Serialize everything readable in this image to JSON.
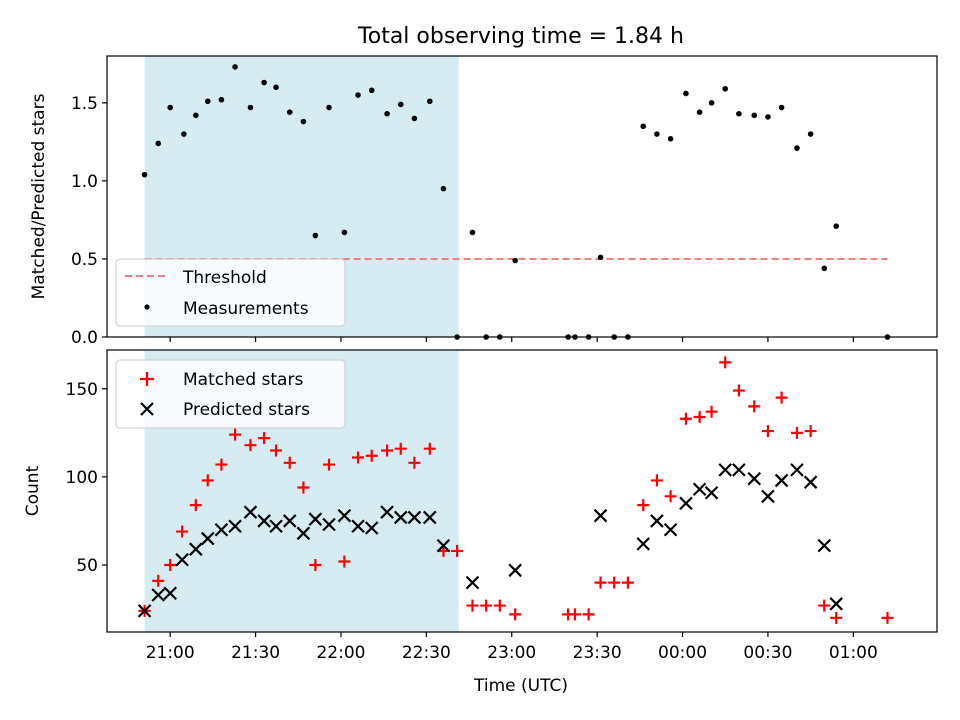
{
  "title": "Total observing time = 1.84 h",
  "colors": {
    "threshold": "#f08080",
    "measurement": "#000000",
    "matched": "#ff0000",
    "predicted": "#000000",
    "shade": "#add8e6"
  },
  "chart_data": [
    {
      "type": "scatter",
      "panel": "top",
      "title": "Total observing time = 1.84 h",
      "ylabel": "Matched/Predicted stars",
      "x_unit": "hours since 20:00 UTC",
      "xlim": [
        20.63,
        25.49
      ],
      "ylim": [
        0,
        1.8
      ],
      "yticks": [
        0.0,
        0.5,
        1.0,
        1.5
      ],
      "ytick_labels": [
        "0.0",
        "0.5",
        "1.0",
        "1.5"
      ],
      "shaded_span": [
        20.85,
        22.69
      ],
      "threshold": {
        "name": "Threshold",
        "y": 0.5,
        "x_range": [
          20.85,
          25.2
        ],
        "style": "dashed"
      },
      "legend_position": "lower-left",
      "series": [
        {
          "name": "Measurements",
          "marker": "dot",
          "points": [
            [
              20.85,
              1.04
            ],
            [
              20.93,
              1.24
            ],
            [
              21.0,
              1.47
            ],
            [
              21.08,
              1.3
            ],
            [
              21.15,
              1.42
            ],
            [
              21.22,
              1.51
            ],
            [
              21.3,
              1.52
            ],
            [
              21.38,
              1.73
            ],
            [
              21.47,
              1.47
            ],
            [
              21.55,
              1.63
            ],
            [
              21.62,
              1.6
            ],
            [
              21.7,
              1.44
            ],
            [
              21.78,
              1.38
            ],
            [
              21.85,
              0.65
            ],
            [
              21.93,
              1.47
            ],
            [
              22.02,
              0.67
            ],
            [
              22.1,
              1.55
            ],
            [
              22.18,
              1.58
            ],
            [
              22.27,
              1.43
            ],
            [
              22.35,
              1.49
            ],
            [
              22.43,
              1.4
            ],
            [
              22.52,
              1.51
            ],
            [
              22.6,
              0.95
            ],
            [
              22.68,
              0.0
            ],
            [
              22.77,
              0.67
            ],
            [
              22.85,
              0.0
            ],
            [
              22.93,
              0.0
            ],
            [
              23.02,
              0.49
            ],
            [
              23.33,
              0.0
            ],
            [
              23.37,
              0.0
            ],
            [
              23.45,
              0.0
            ],
            [
              23.52,
              0.51
            ],
            [
              23.6,
              0.0
            ],
            [
              23.68,
              0.0
            ],
            [
              23.77,
              1.35
            ],
            [
              23.85,
              1.3
            ],
            [
              23.93,
              1.27
            ],
            [
              24.02,
              1.56
            ],
            [
              24.1,
              1.44
            ],
            [
              24.17,
              1.5
            ],
            [
              24.25,
              1.59
            ],
            [
              24.33,
              1.43
            ],
            [
              24.42,
              1.42
            ],
            [
              24.5,
              1.41
            ],
            [
              24.58,
              1.47
            ],
            [
              24.67,
              1.21
            ],
            [
              24.75,
              1.3
            ],
            [
              24.83,
              0.44
            ],
            [
              24.9,
              0.71
            ],
            [
              25.2,
              0.0
            ]
          ]
        }
      ]
    },
    {
      "type": "scatter",
      "panel": "bottom",
      "xlabel": "Time (UTC)",
      "ylabel": "Count",
      "x_unit": "hours since 20:00 UTC",
      "xlim": [
        20.63,
        25.49
      ],
      "ylim": [
        12,
        172
      ],
      "yticks": [
        50,
        100,
        150
      ],
      "xticks": [
        21.0,
        21.5,
        22.0,
        22.5,
        23.0,
        23.5,
        24.0,
        24.5,
        25.0
      ],
      "xtick_labels": [
        "21:00",
        "21:30",
        "22:00",
        "22:30",
        "23:00",
        "23:30",
        "00:00",
        "00:30",
        "01:00"
      ],
      "shaded_span": [
        20.85,
        22.69
      ],
      "legend_position": "upper-left",
      "series": [
        {
          "name": "Matched stars",
          "marker": "plus",
          "points": [
            [
              20.85,
              24
            ],
            [
              20.93,
              41
            ],
            [
              21.0,
              50
            ],
            [
              21.07,
              69
            ],
            [
              21.15,
              84
            ],
            [
              21.22,
              98
            ],
            [
              21.3,
              107
            ],
            [
              21.38,
              124
            ],
            [
              21.47,
              118
            ],
            [
              21.55,
              122
            ],
            [
              21.62,
              115
            ],
            [
              21.7,
              108
            ],
            [
              21.78,
              94
            ],
            [
              21.85,
              50
            ],
            [
              21.93,
              107
            ],
            [
              22.02,
              52
            ],
            [
              22.1,
              111
            ],
            [
              22.18,
              112
            ],
            [
              22.27,
              115
            ],
            [
              22.35,
              116
            ],
            [
              22.43,
              108
            ],
            [
              22.52,
              116
            ],
            [
              22.6,
              58
            ],
            [
              22.68,
              58
            ],
            [
              22.77,
              27
            ],
            [
              22.85,
              27
            ],
            [
              22.93,
              27
            ],
            [
              23.02,
              22
            ],
            [
              23.33,
              22
            ],
            [
              23.37,
              22
            ],
            [
              23.45,
              22
            ],
            [
              23.52,
              40
            ],
            [
              23.6,
              40
            ],
            [
              23.68,
              40
            ],
            [
              23.77,
              84
            ],
            [
              23.85,
              98
            ],
            [
              23.93,
              89
            ],
            [
              24.02,
              133
            ],
            [
              24.1,
              134
            ],
            [
              24.17,
              137
            ],
            [
              24.25,
              165
            ],
            [
              24.33,
              149
            ],
            [
              24.42,
              140
            ],
            [
              24.5,
              126
            ],
            [
              24.58,
              145
            ],
            [
              24.67,
              125
            ],
            [
              24.75,
              126
            ],
            [
              24.83,
              27
            ],
            [
              24.9,
              20
            ],
            [
              25.2,
              20
            ]
          ]
        },
        {
          "name": "Predicted stars",
          "marker": "x",
          "points": [
            [
              20.85,
              24
            ],
            [
              20.93,
              33
            ],
            [
              21.0,
              34
            ],
            [
              21.07,
              53
            ],
            [
              21.15,
              59
            ],
            [
              21.22,
              65
            ],
            [
              21.3,
              70
            ],
            [
              21.38,
              72
            ],
            [
              21.47,
              80
            ],
            [
              21.55,
              75
            ],
            [
              21.62,
              72
            ],
            [
              21.7,
              75
            ],
            [
              21.78,
              68
            ],
            [
              21.85,
              76
            ],
            [
              21.93,
              73
            ],
            [
              22.02,
              78
            ],
            [
              22.1,
              72
            ],
            [
              22.18,
              71
            ],
            [
              22.27,
              80
            ],
            [
              22.35,
              77
            ],
            [
              22.43,
              77
            ],
            [
              22.52,
              77
            ],
            [
              22.6,
              61
            ],
            [
              22.77,
              40
            ],
            [
              23.02,
              47
            ],
            [
              23.52,
              78
            ],
            [
              23.77,
              62
            ],
            [
              23.85,
              75
            ],
            [
              23.93,
              70
            ],
            [
              24.02,
              85
            ],
            [
              24.1,
              93
            ],
            [
              24.17,
              91
            ],
            [
              24.25,
              104
            ],
            [
              24.33,
              104
            ],
            [
              24.42,
              99
            ],
            [
              24.5,
              89
            ],
            [
              24.58,
              98
            ],
            [
              24.67,
              104
            ],
            [
              24.75,
              97
            ],
            [
              24.83,
              61
            ],
            [
              24.9,
              28
            ]
          ]
        }
      ]
    }
  ]
}
